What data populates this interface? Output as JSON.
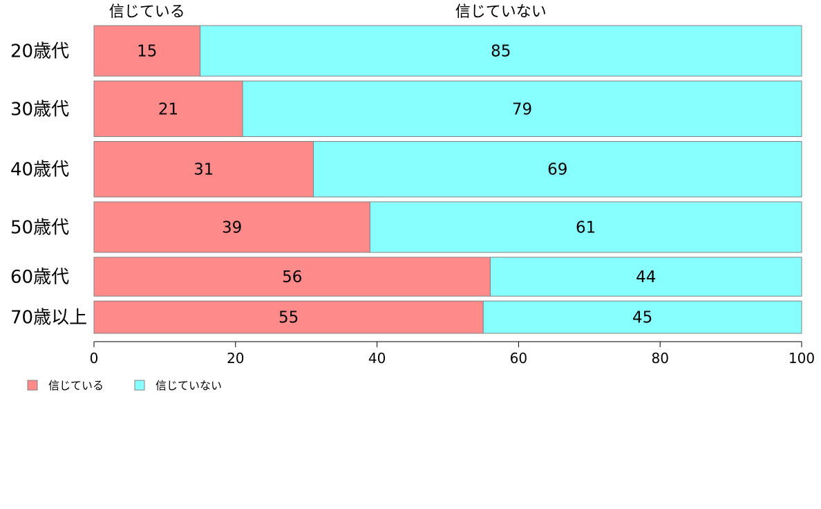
{
  "chart_data": {
    "type": "bar",
    "orientation": "horizontal",
    "stacked": true,
    "categories": [
      "20歳代",
      "30歳代",
      "40歳代",
      "50歳代",
      "60歳代",
      "70歳以上"
    ],
    "series": [
      {
        "name": "信じている",
        "values": [
          15,
          21,
          31,
          39,
          56,
          55
        ],
        "color": "#FF8A8A"
      },
      {
        "name": "信じていない",
        "values": [
          85,
          79,
          69,
          61,
          44,
          45
        ],
        "color": "#88FFFF"
      }
    ],
    "bar_weights": [
      1.0,
      1.1,
      1.1,
      1.0,
      0.77,
      0.64
    ],
    "xlim": [
      0,
      100
    ],
    "xticks": [
      0,
      20,
      40,
      60,
      80,
      100
    ],
    "top_labels": [
      "信じている",
      "信じていない"
    ],
    "legend": {
      "position": "bottom-left",
      "entries": [
        "信じている",
        "信じていない"
      ]
    },
    "grid": false,
    "bar_border_color": "#808080",
    "title": "",
    "xlabel": "",
    "ylabel": ""
  }
}
